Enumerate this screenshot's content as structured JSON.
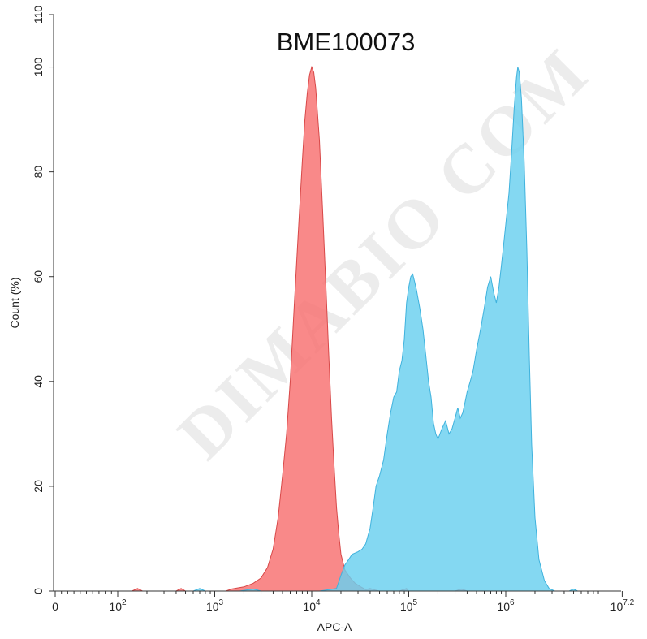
{
  "chart_data": {
    "type": "area",
    "title": "BME100073",
    "xlabel": "APC-A",
    "ylabel": "Count (%)",
    "x_scale": "biexponential-log",
    "xlim": [
      0,
      16000000
    ],
    "ylim": [
      0,
      110
    ],
    "x_ticks": [
      {
        "value": 0,
        "base": "0",
        "exp": ""
      },
      {
        "value": 100,
        "base": "10",
        "exp": "2"
      },
      {
        "value": 1000,
        "base": "10",
        "exp": "3"
      },
      {
        "value": 10000,
        "base": "10",
        "exp": "4"
      },
      {
        "value": 100000,
        "base": "10",
        "exp": "5"
      },
      {
        "value": 1000000,
        "base": "10",
        "exp": "6"
      },
      {
        "value": 15848932,
        "base": "10",
        "exp": "7.2"
      }
    ],
    "y_ticks": [
      {
        "value": 0,
        "label": "0"
      },
      {
        "value": 20,
        "label": "20"
      },
      {
        "value": 40,
        "label": "40"
      },
      {
        "value": 60,
        "label": "60"
      },
      {
        "value": 80,
        "label": "80"
      },
      {
        "value": 100,
        "label": "100"
      },
      {
        "value": 110,
        "label": "110"
      }
    ],
    "grid": false,
    "legend": "none",
    "series": [
      {
        "color": "#f86f6f",
        "stroke": "#d84848",
        "points": [
          [
            140,
            0
          ],
          [
            160,
            0.5
          ],
          [
            180,
            0
          ],
          [
            400,
            0
          ],
          [
            450,
            0.5
          ],
          [
            500,
            0
          ],
          [
            1300,
            0
          ],
          [
            1500,
            0.4
          ],
          [
            2000,
            0.8
          ],
          [
            2500,
            1.5
          ],
          [
            3000,
            2.5
          ],
          [
            3500,
            4.5
          ],
          [
            4000,
            8
          ],
          [
            4500,
            14
          ],
          [
            5000,
            22
          ],
          [
            5500,
            30
          ],
          [
            6000,
            40
          ],
          [
            6500,
            52
          ],
          [
            7000,
            63
          ],
          [
            7500,
            73
          ],
          [
            8000,
            82
          ],
          [
            8500,
            90
          ],
          [
            9000,
            95
          ],
          [
            9500,
            98.5
          ],
          [
            10000,
            100
          ],
          [
            10500,
            99
          ],
          [
            11000,
            96
          ],
          [
            12000,
            86
          ],
          [
            13000,
            72
          ],
          [
            14000,
            58
          ],
          [
            15000,
            45
          ],
          [
            16000,
            33
          ],
          [
            17000,
            24
          ],
          [
            18000,
            16
          ],
          [
            19000,
            11
          ],
          [
            20000,
            7
          ],
          [
            22000,
            4
          ],
          [
            25000,
            2.5
          ],
          [
            28000,
            1.5
          ],
          [
            32000,
            0.8
          ],
          [
            36000,
            0.3
          ],
          [
            40000,
            0.5
          ],
          [
            45000,
            0.2
          ],
          [
            50000,
            0
          ],
          [
            80000,
            0
          ],
          [
            95000,
            0.5
          ],
          [
            100000,
            0
          ],
          [
            300000,
            0
          ],
          [
            350000,
            0.4
          ],
          [
            400000,
            0
          ]
        ]
      },
      {
        "color": "#69cfef",
        "stroke": "#3fb2dd",
        "points": [
          [
            600,
            0
          ],
          [
            700,
            0.5
          ],
          [
            800,
            0
          ],
          [
            1800,
            0
          ],
          [
            2500,
            0.4
          ],
          [
            3000,
            0
          ],
          [
            12000,
            0
          ],
          [
            18000,
            0.5
          ],
          [
            20000,
            3
          ],
          [
            22000,
            5
          ],
          [
            24000,
            6
          ],
          [
            26000,
            7
          ],
          [
            30000,
            7.5
          ],
          [
            33000,
            8
          ],
          [
            36000,
            9
          ],
          [
            40000,
            12
          ],
          [
            43000,
            16
          ],
          [
            46000,
            20
          ],
          [
            50000,
            22
          ],
          [
            55000,
            25
          ],
          [
            60000,
            30
          ],
          [
            65000,
            34
          ],
          [
            70000,
            37
          ],
          [
            75000,
            38
          ],
          [
            80000,
            42
          ],
          [
            85000,
            44
          ],
          [
            90000,
            48
          ],
          [
            95000,
            55
          ],
          [
            100000,
            58
          ],
          [
            105000,
            60
          ],
          [
            110000,
            60.5
          ],
          [
            115000,
            59
          ],
          [
            120000,
            57.5
          ],
          [
            130000,
            54
          ],
          [
            140000,
            50
          ],
          [
            150000,
            45
          ],
          [
            160000,
            40
          ],
          [
            170000,
            37
          ],
          [
            180000,
            32
          ],
          [
            190000,
            30
          ],
          [
            200000,
            29
          ],
          [
            220000,
            31
          ],
          [
            240000,
            32.5
          ],
          [
            260000,
            30
          ],
          [
            280000,
            31
          ],
          [
            300000,
            33
          ],
          [
            320000,
            35
          ],
          [
            340000,
            33
          ],
          [
            360000,
            34
          ],
          [
            380000,
            36
          ],
          [
            400000,
            38
          ],
          [
            430000,
            40
          ],
          [
            460000,
            42
          ],
          [
            500000,
            46
          ],
          [
            550000,
            50
          ],
          [
            600000,
            54
          ],
          [
            650000,
            58
          ],
          [
            700000,
            60
          ],
          [
            750000,
            57
          ],
          [
            800000,
            55
          ],
          [
            850000,
            58
          ],
          [
            900000,
            62
          ],
          [
            950000,
            66
          ],
          [
            1000000,
            70
          ],
          [
            1080000,
            76
          ],
          [
            1150000,
            84
          ],
          [
            1220000,
            92
          ],
          [
            1290000,
            98
          ],
          [
            1330000,
            100
          ],
          [
            1380000,
            99
          ],
          [
            1450000,
            94
          ],
          [
            1550000,
            82
          ],
          [
            1650000,
            65
          ],
          [
            1750000,
            45
          ],
          [
            1850000,
            28
          ],
          [
            2000000,
            14
          ],
          [
            2200000,
            6
          ],
          [
            2500000,
            2
          ],
          [
            2800000,
            0.5
          ],
          [
            3200000,
            0
          ],
          [
            4500000,
            0
          ],
          [
            5000000,
            0.4
          ],
          [
            5500000,
            0
          ]
        ]
      }
    ],
    "watermark": "DIMABIO COM"
  }
}
